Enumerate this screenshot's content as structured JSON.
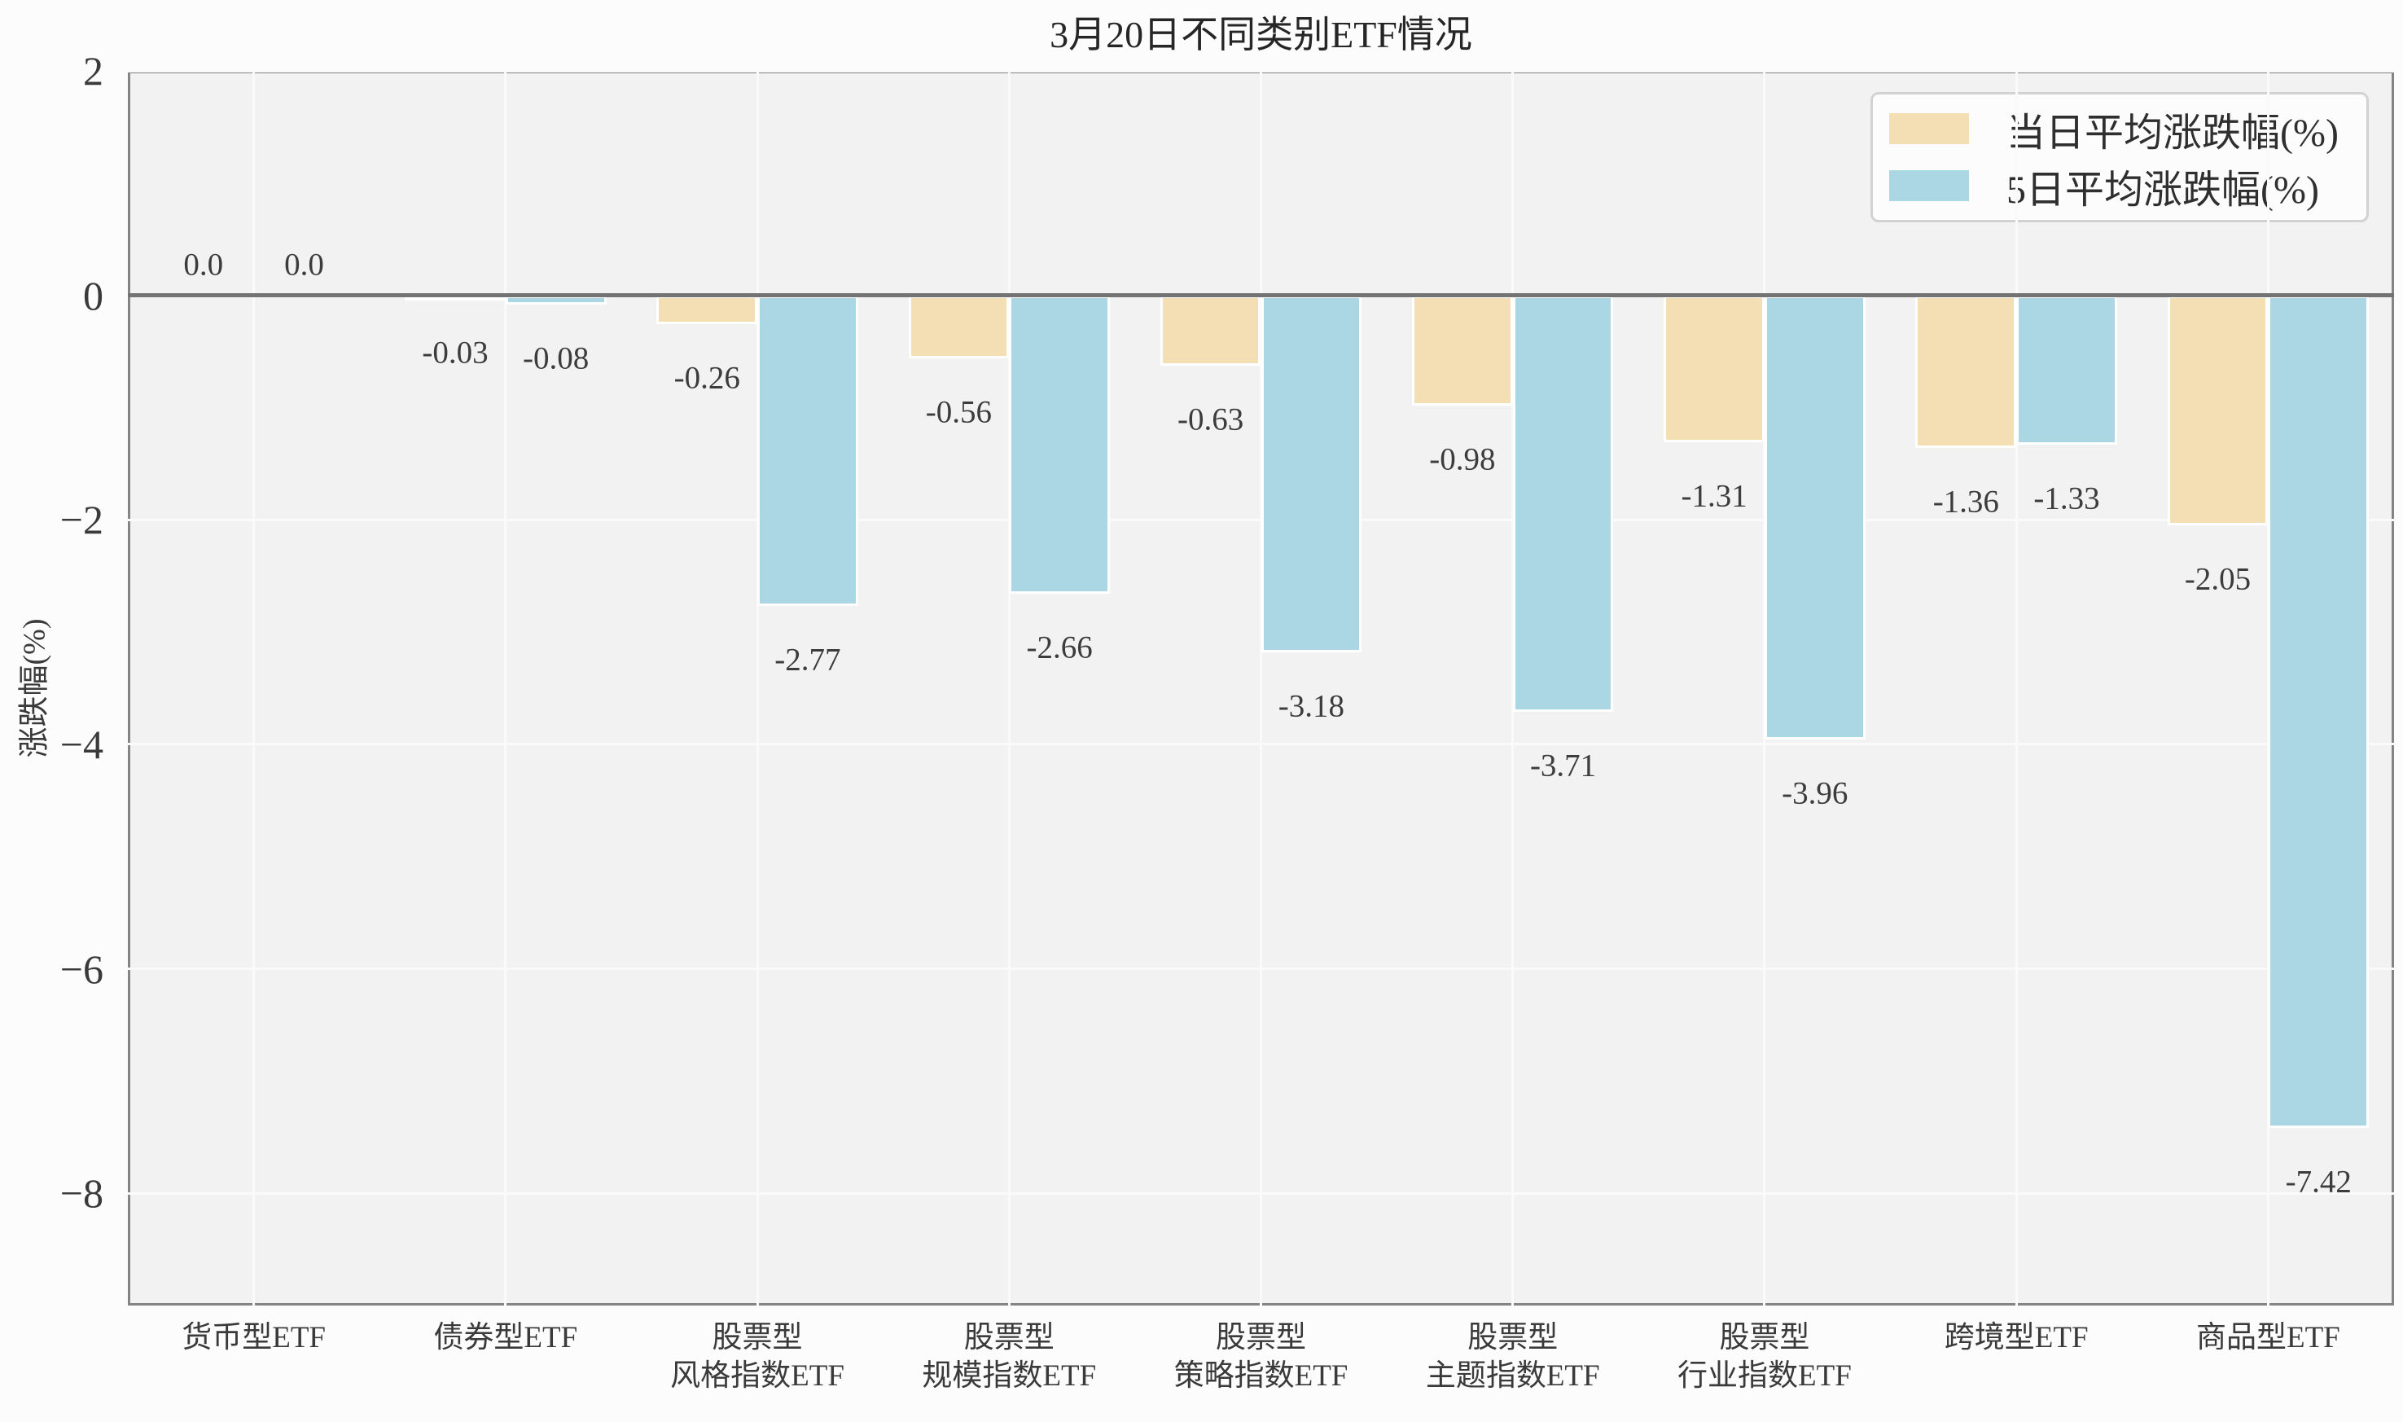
{
  "title": "3月20日不同类别ETF情况",
  "y_axis": {
    "label": "涨跌幅(%)",
    "tick_values": [
      2,
      0,
      -2,
      -4,
      -6,
      -8
    ],
    "tick_labels": [
      "2",
      "0",
      "−2",
      "−4",
      "−6",
      "−8"
    ]
  },
  "legend": {
    "items": [
      {
        "label": "当日平均涨跌幅(%)",
        "color": "#f4dfb5"
      },
      {
        "label": "5日平均涨跌幅(%)",
        "color": "#abd7e5"
      }
    ]
  },
  "colors": {
    "figure_background": "#fcfcfc",
    "plot_background": "#f2f2f2",
    "gridline": "#fafafa",
    "spine": "#848484",
    "zero_line": "#737373",
    "bar_edge": "#ffffff",
    "text": "#3a3a3a"
  },
  "chart_data": {
    "type": "bar",
    "title": "3月20日不同类别ETF情况",
    "xlabel": "",
    "ylabel": "涨跌幅(%)",
    "ylim": [
      -9,
      2
    ],
    "grid": true,
    "legend_position": "upper right",
    "categories": [
      [
        "货币型ETF"
      ],
      [
        "债券型ETF"
      ],
      [
        "股票型",
        "风格指数ETF"
      ],
      [
        "股票型",
        "规模指数ETF"
      ],
      [
        "股票型",
        "策略指数ETF"
      ],
      [
        "股票型",
        "主题指数ETF"
      ],
      [
        "股票型",
        "行业指数ETF"
      ],
      [
        "跨境型ETF"
      ],
      [
        "商品型ETF"
      ]
    ],
    "series": [
      {
        "name": "当日平均涨跌幅(%)",
        "color": "#f4dfb5",
        "values": [
          0.0,
          -0.03,
          -0.26,
          -0.56,
          -0.63,
          -0.98,
          -1.31,
          -1.36,
          -2.05
        ],
        "value_labels": [
          "0.0",
          "-0.03",
          "-0.26",
          "-0.56",
          "-0.63",
          "-0.98",
          "-1.31",
          "-1.36",
          "-2.05"
        ]
      },
      {
        "name": "5日平均涨跌幅(%)",
        "color": "#abd7e5",
        "values": [
          0.0,
          -0.08,
          -2.77,
          -2.66,
          -3.18,
          -3.71,
          -3.96,
          -1.33,
          -7.42
        ],
        "value_labels": [
          "0.0",
          "-0.08",
          "-2.77",
          "-2.66",
          "-3.18",
          "-3.71",
          "-3.96",
          "-1.33",
          "-7.42"
        ]
      }
    ]
  }
}
